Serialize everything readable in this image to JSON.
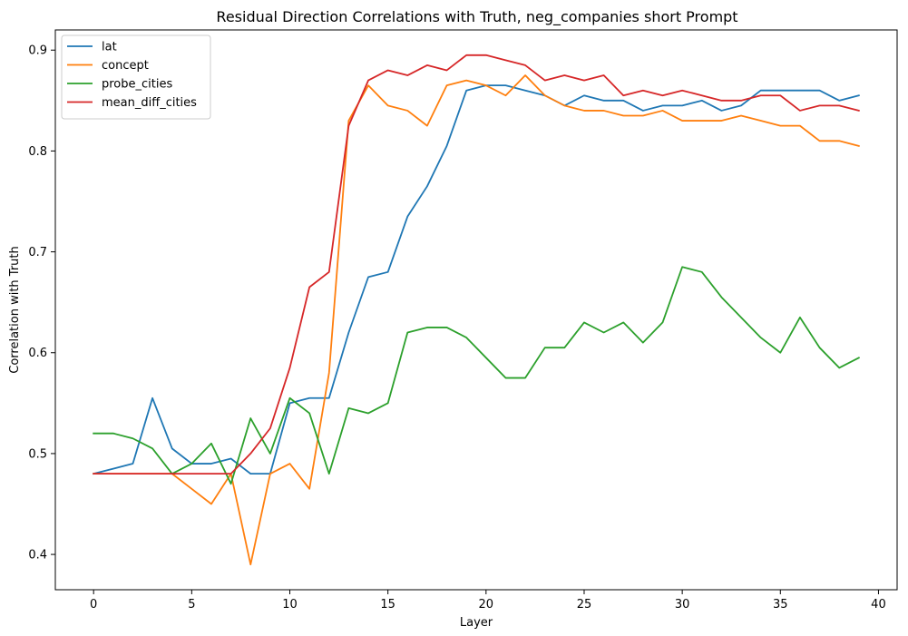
{
  "chart_data": {
    "type": "line",
    "title": "Residual Direction Correlations with Truth, neg_companies short Prompt",
    "xlabel": "Layer",
    "ylabel": "Correlation with Truth",
    "xlim": [
      -1.95,
      40.95
    ],
    "ylim": [
      0.365,
      0.92
    ],
    "xticks": [
      0,
      5,
      10,
      15,
      20,
      25,
      30,
      35,
      40
    ],
    "yticks": [
      0.4,
      0.5,
      0.6,
      0.7,
      0.8,
      0.9
    ],
    "ytick_labels": [
      "0.4",
      "0.5",
      "0.6",
      "0.7",
      "0.8",
      "0.9"
    ],
    "legend_position": "top-left",
    "grid": false,
    "x": [
      0,
      1,
      2,
      3,
      4,
      5,
      6,
      7,
      8,
      9,
      10,
      11,
      12,
      13,
      14,
      15,
      16,
      17,
      18,
      19,
      20,
      21,
      22,
      23,
      24,
      25,
      26,
      27,
      28,
      29,
      30,
      31,
      32,
      33,
      34,
      35,
      36,
      37,
      38,
      39
    ],
    "series": [
      {
        "name": "lat",
        "color": "#1f77b4",
        "values": [
          0.48,
          0.485,
          0.49,
          0.555,
          0.505,
          0.49,
          0.49,
          0.495,
          0.48,
          0.48,
          0.55,
          0.555,
          0.555,
          0.62,
          0.675,
          0.68,
          0.735,
          0.765,
          0.805,
          0.86,
          0.865,
          0.865,
          0.86,
          0.855,
          0.845,
          0.855,
          0.85,
          0.85,
          0.84,
          0.845,
          0.845,
          0.85,
          0.84,
          0.845,
          0.86,
          0.86,
          0.86,
          0.86,
          0.85,
          0.855
        ]
      },
      {
        "name": "concept",
        "color": "#ff7f0e",
        "values": [
          0.48,
          0.48,
          0.48,
          0.48,
          0.48,
          0.465,
          0.45,
          0.48,
          0.39,
          0.48,
          0.49,
          0.465,
          0.58,
          0.83,
          0.865,
          0.845,
          0.84,
          0.825,
          0.865,
          0.87,
          0.865,
          0.855,
          0.875,
          0.855,
          0.845,
          0.84,
          0.84,
          0.835,
          0.835,
          0.84,
          0.83,
          0.83,
          0.83,
          0.835,
          0.83,
          0.825,
          0.825,
          0.81,
          0.81,
          0.805
        ]
      },
      {
        "name": "probe_cities",
        "color": "#2ca02c",
        "values": [
          0.52,
          0.52,
          0.515,
          0.505,
          0.48,
          0.49,
          0.51,
          0.47,
          0.535,
          0.5,
          0.555,
          0.54,
          0.48,
          0.545,
          0.54,
          0.55,
          0.62,
          0.625,
          0.625,
          0.615,
          0.595,
          0.575,
          0.575,
          0.605,
          0.605,
          0.63,
          0.62,
          0.63,
          0.61,
          0.63,
          0.685,
          0.68,
          0.655,
          0.635,
          0.615,
          0.6,
          0.635,
          0.605,
          0.585,
          0.595
        ]
      },
      {
        "name": "mean_diff_cities",
        "color": "#d62728",
        "values": [
          0.48,
          0.48,
          0.48,
          0.48,
          0.48,
          0.48,
          0.48,
          0.48,
          0.5,
          0.525,
          0.585,
          0.665,
          0.68,
          0.825,
          0.87,
          0.88,
          0.875,
          0.885,
          0.88,
          0.895,
          0.895,
          0.89,
          0.885,
          0.87,
          0.875,
          0.87,
          0.875,
          0.855,
          0.86,
          0.855,
          0.86,
          0.855,
          0.85,
          0.85,
          0.855,
          0.855,
          0.84,
          0.845,
          0.845,
          0.84
        ]
      }
    ]
  }
}
